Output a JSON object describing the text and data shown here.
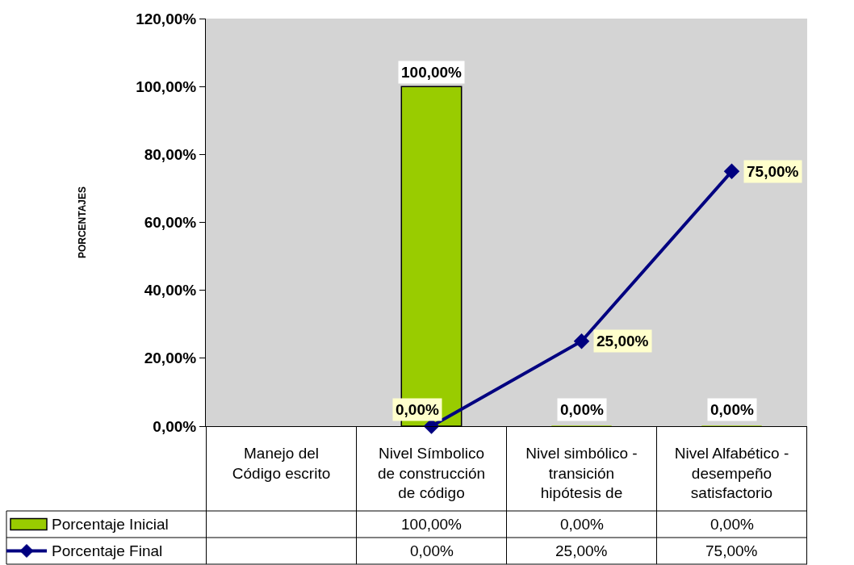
{
  "chart_data": {
    "type": "bar",
    "ylabel": "PORCENTAJES",
    "categories": [
      "Manejo del Código escrito",
      "Nivel Símbolico de construcción de código",
      "Nivel simbólico - transición hipótesis de",
      "Nivel Alfabético - desempeño satisfactorio"
    ],
    "series": [
      {
        "name": "Porcentaje Inicial",
        "color": "#99cc00",
        "values": [
          null,
          100,
          0,
          0
        ],
        "value_labels": [
          null,
          "100,00%",
          "0,00%",
          "0,00%"
        ]
      },
      {
        "name": "Porcentaje Final",
        "type": "line",
        "color": "#000080",
        "marker": "diamond",
        "values": [
          null,
          0,
          25,
          75
        ],
        "value_labels": [
          null,
          "0,00%",
          "25,00%",
          "75,00%"
        ]
      }
    ],
    "ylim": [
      0,
      120
    ],
    "yticks": [
      {
        "value": 0,
        "label": "0,00%"
      },
      {
        "value": 20,
        "label": "20,00%"
      },
      {
        "value": 40,
        "label": "40,00%"
      },
      {
        "value": 60,
        "label": "60,00%"
      },
      {
        "value": 80,
        "label": "80,00%"
      },
      {
        "value": 100,
        "label": "100,00%"
      },
      {
        "value": 120,
        "label": "120,00%"
      }
    ],
    "legend": "bottom left"
  }
}
